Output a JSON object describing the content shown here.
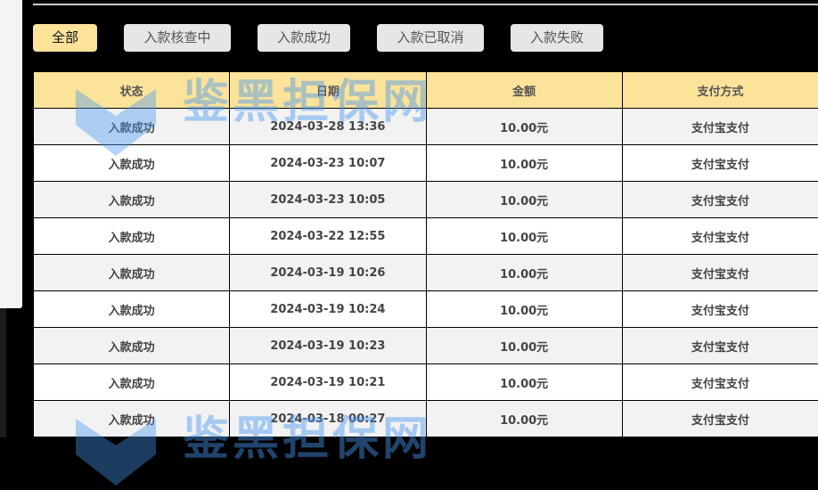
{
  "filters": [
    {
      "label": "全部",
      "active": true
    },
    {
      "label": "入款核查中",
      "active": false
    },
    {
      "label": "入款成功",
      "active": false
    },
    {
      "label": "入款已取消",
      "active": false
    },
    {
      "label": "入款失败",
      "active": false
    }
  ],
  "table": {
    "headers": [
      "状态",
      "日期",
      "金额",
      "支付方式"
    ],
    "rows": [
      [
        "入款成功",
        "2024-03-28 13:36",
        "10.00元",
        "支付宝支付"
      ],
      [
        "入款成功",
        "2024-03-23 10:07",
        "10.00元",
        "支付宝支付"
      ],
      [
        "入款成功",
        "2024-03-23 10:05",
        "10.00元",
        "支付宝支付"
      ],
      [
        "入款成功",
        "2024-03-22 12:55",
        "10.00元",
        "支付宝支付"
      ],
      [
        "入款成功",
        "2024-03-19 10:26",
        "10.00元",
        "支付宝支付"
      ],
      [
        "入款成功",
        "2024-03-19 10:24",
        "10.00元",
        "支付宝支付"
      ],
      [
        "入款成功",
        "2024-03-19 10:23",
        "10.00元",
        "支付宝支付"
      ],
      [
        "入款成功",
        "2024-03-19 10:21",
        "10.00元",
        "支付宝支付"
      ],
      [
        "入款成功",
        "2024-03-18 00:27",
        "10.00元",
        "支付宝支付"
      ]
    ]
  },
  "watermark": {
    "text": "鉴黑担保网"
  },
  "colors": {
    "accent": "#fbe39a",
    "watermark": "#4696f0"
  }
}
